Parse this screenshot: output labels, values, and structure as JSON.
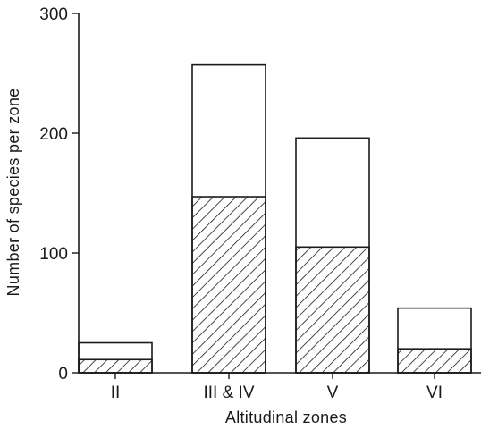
{
  "chart_data": {
    "type": "bar",
    "xlabel": "Altitudinal zones",
    "ylabel": "Number of species per zone",
    "ylim": [
      0,
      300
    ],
    "yticks": [
      0,
      100,
      200,
      300
    ],
    "categories": [
      "II",
      "III & IV",
      "V",
      "VI"
    ],
    "series": [
      {
        "values": [
          25,
          257,
          196,
          54
        ]
      },
      {
        "values": [
          11,
          147,
          105,
          20
        ]
      }
    ],
    "hatch_series_index": 1,
    "grid": false,
    "legend": "none",
    "colors": {
      "ink": "#1a1a1a",
      "fill": "#ffffff"
    }
  }
}
